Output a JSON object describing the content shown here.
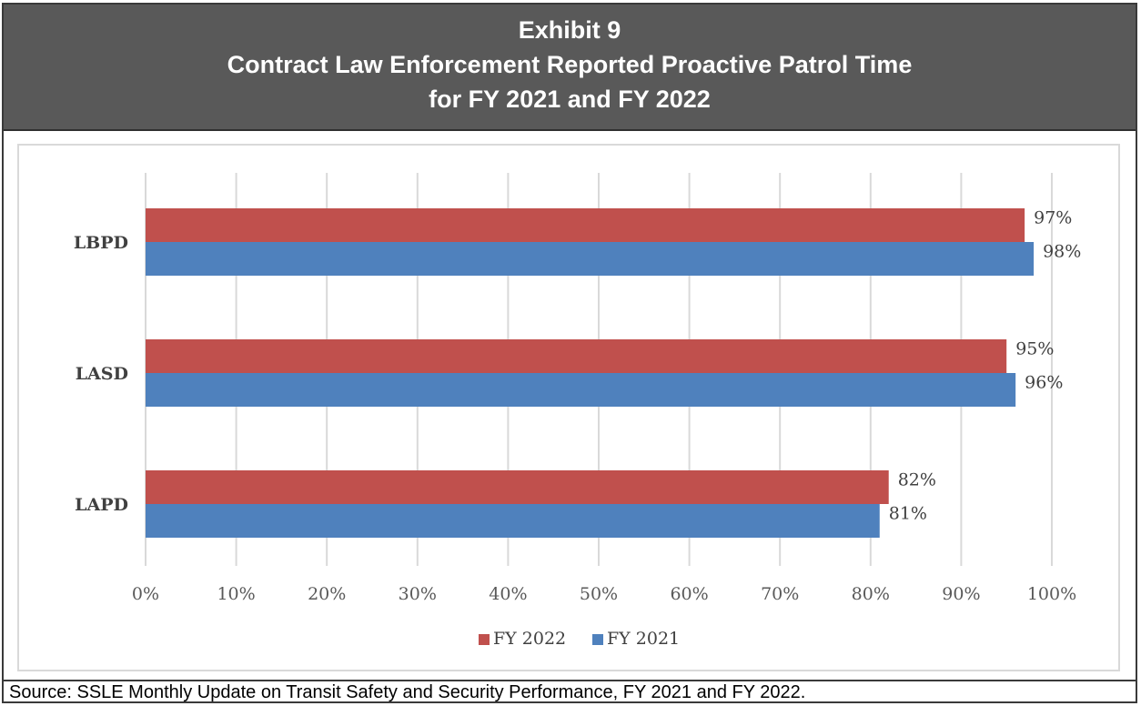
{
  "header": {
    "line1": "Exhibit  9",
    "line2": "Contract Law Enforcement Reported Proactive Patrol Time",
    "line3": "for FY 2021 and FY 2022",
    "background": "#595959",
    "color": "#ffffff"
  },
  "source": "Source: SSLE Monthly Update on Transit Safety and Security Performance, FY 2021 and FY 2022.",
  "chart_data": {
    "type": "bar",
    "orientation": "horizontal",
    "categories": [
      "LBPD",
      "LASD",
      "LAPD"
    ],
    "series": [
      {
        "name": "FY 2022",
        "color": "#c0504d",
        "values": [
          97,
          95,
          82
        ],
        "labels": [
          "97%",
          "95%",
          "82%"
        ]
      },
      {
        "name": "FY 2021",
        "color": "#4f81bd",
        "values": [
          98,
          96,
          81
        ],
        "labels": [
          "98%",
          "96%",
          "81%"
        ]
      }
    ],
    "xlim": [
      0,
      100
    ],
    "xticks": [
      "0%",
      "10%",
      "20%",
      "30%",
      "40%",
      "50%",
      "60%",
      "70%",
      "80%",
      "90%",
      "100%"
    ],
    "grid": true,
    "legend": "bottom",
    "title": "",
    "xlabel": "",
    "ylabel": ""
  }
}
